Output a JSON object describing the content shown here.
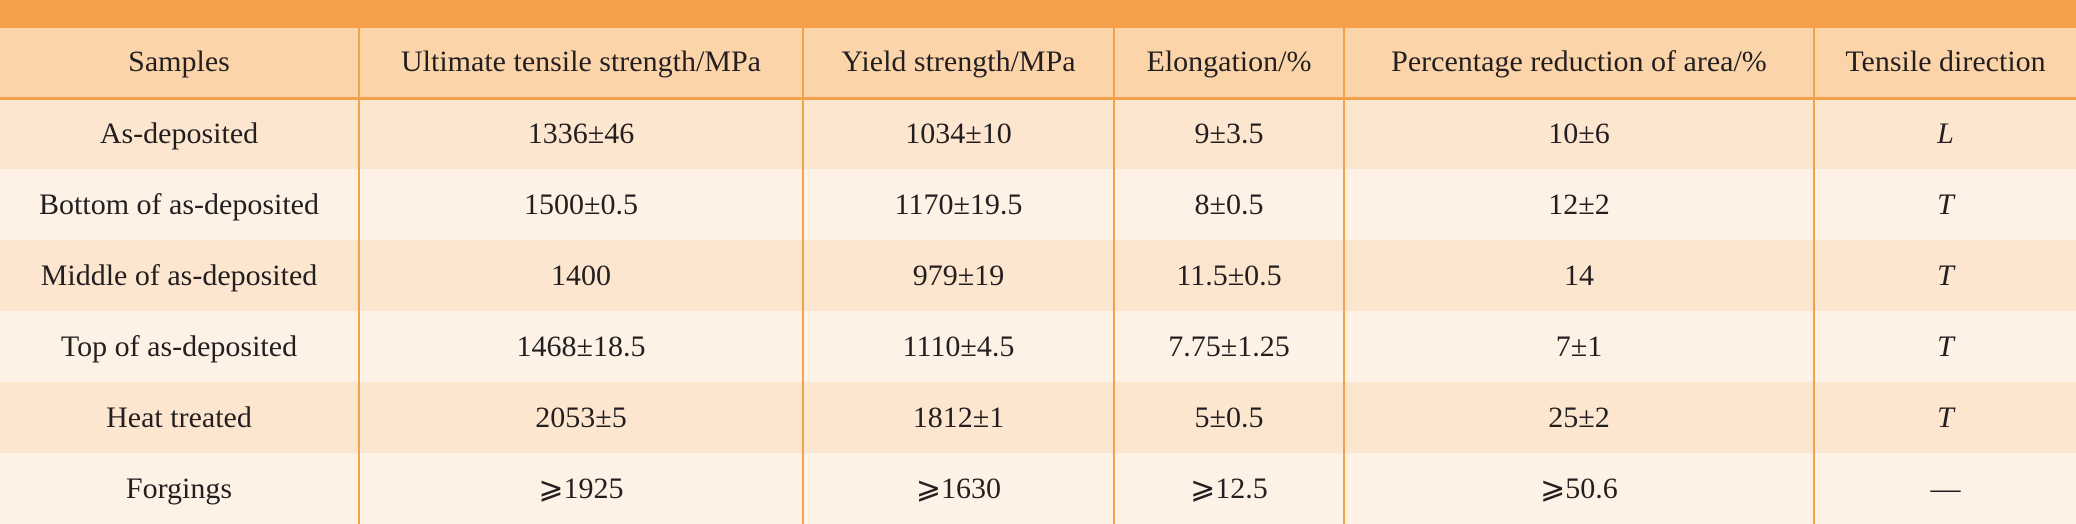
{
  "table": {
    "headers": [
      "Samples",
      "Ultimate tensile strength/MPa",
      "Yield strength/MPa",
      "Elongation/%",
      "Percentage reduction of area/%",
      "Tensile direction"
    ],
    "rows": [
      [
        "As-deposited",
        "1336±46",
        "1034±10",
        "9±3.5",
        "10±6",
        "L"
      ],
      [
        "Bottom of as-deposited",
        "1500±0.5",
        "1170±19.5",
        "8±0.5",
        "12±2",
        "T"
      ],
      [
        "Middle of as-deposited",
        "1400",
        "979±19",
        "11.5±0.5",
        "14",
        "T"
      ],
      [
        "Top of as-deposited",
        "1468±18.5",
        "1110±4.5",
        "7.75±1.25",
        "7±1",
        "T"
      ],
      [
        "Heat treated",
        "2053±5",
        "1812±1",
        "5±0.5",
        "25±2",
        "T"
      ],
      [
        "Forgings",
        "⩾1925",
        "⩾1630",
        "⩾12.5",
        "⩾50.6",
        "—"
      ]
    ]
  },
  "colors": {
    "accent": "#f5a04a",
    "header_bg": "#fbd5a9",
    "row_odd": "#fde6cf",
    "row_even": "#fef1e5"
  }
}
